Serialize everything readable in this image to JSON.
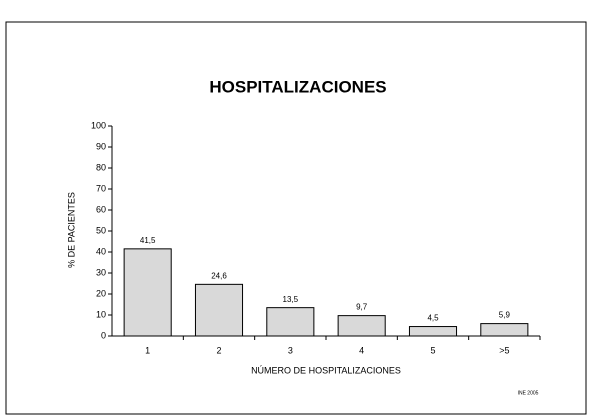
{
  "chart_data": {
    "type": "bar",
    "title": "HOSPITALIZACIONES",
    "y_label": "% DE PACIENTES",
    "x_label": "NÚMERO DE HOSPITALIZACIONES",
    "source": "INE 2005",
    "categories": [
      "1",
      "2",
      "3",
      "4",
      "5",
      ">5"
    ],
    "values": [
      41.5,
      24.6,
      13.5,
      9.7,
      4.5,
      5.9
    ],
    "value_labels": [
      "41,5",
      "24,6",
      "13,5",
      "9,7",
      "4,5",
      "5,9"
    ],
    "color": "#d9d9d9",
    "ylim": [
      0,
      100
    ],
    "yticks": [
      0,
      10,
      20,
      30,
      40,
      50,
      60,
      70,
      80,
      90,
      100
    ],
    "grid": false
  }
}
